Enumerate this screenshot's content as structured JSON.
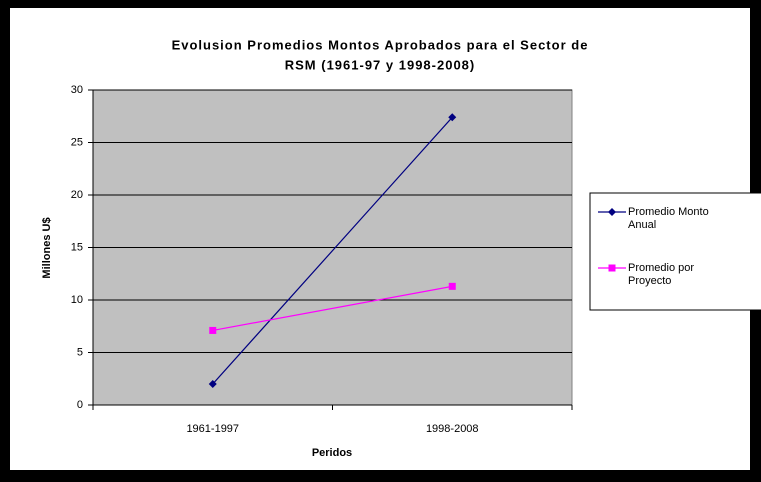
{
  "chart_data": {
    "type": "line",
    "title": [
      "Evolusion Promedios Montos Aprobados para el Sector de",
      "RSM (1961-97 y 1998-2008)"
    ],
    "x_label": "Peridos",
    "y_label": "Millones U$",
    "categories": [
      "1961-1997",
      "1998-2008"
    ],
    "series": [
      {
        "name": "Promedio Monto Anual",
        "color": "#000080",
        "marker": "diamond",
        "values": [
          2,
          27.4
        ]
      },
      {
        "name": "Promedio por Proyecto",
        "color": "#ff00ff",
        "marker": "square",
        "values": [
          7.1,
          11.3
        ]
      }
    ],
    "ylim": [
      0,
      30
    ],
    "yticks": [
      0,
      5,
      10,
      15,
      20,
      25,
      30
    ],
    "grid": true,
    "legend": "right"
  }
}
